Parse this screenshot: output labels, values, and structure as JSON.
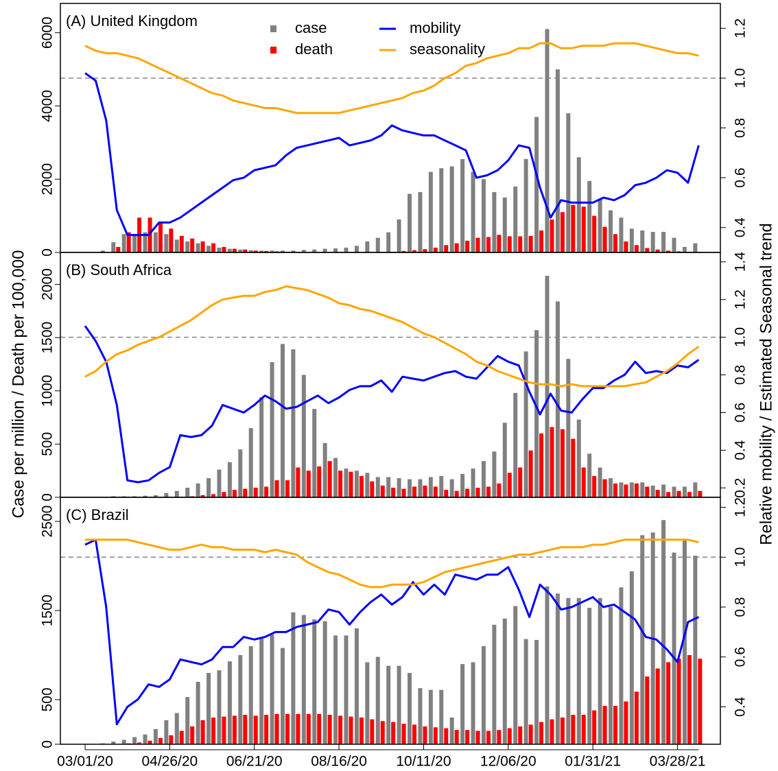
{
  "y_label": "Case per million / Death per 100,000",
  "y2_label": "Relative mobility / Estimated Seasonal trend",
  "chart_data": [
    {
      "type": "bar_line",
      "title": "(A) United Kingdom",
      "legend": true,
      "ylim": [
        0,
        6800
      ],
      "yticks": [
        0,
        2000,
        4000,
        6000
      ],
      "y2lim": [
        0.3,
        1.3
      ],
      "y2ticks": [
        0.4,
        0.6,
        0.8,
        {
          "value": 1,
          "label": "1.0"
        },
        1.2
      ],
      "y2_reference": 1,
      "series": [
        {
          "name": "case",
          "mark": "bar",
          "color": "#808080",
          "values": [
            0,
            10,
            50,
            280,
            500,
            500,
            550,
            550,
            500,
            350,
            300,
            250,
            180,
            130,
            100,
            80,
            60,
            50,
            50,
            50,
            50,
            70,
            80,
            100,
            110,
            130,
            180,
            300,
            400,
            550,
            900,
            1600,
            1650,
            2200,
            2300,
            2350,
            2550,
            2200,
            2000,
            1650,
            1500,
            1800,
            2550,
            3700,
            6100,
            5000,
            3800,
            2600,
            1950,
            1450,
            1150,
            950,
            650,
            600,
            560,
            560,
            400,
            150,
            250
          ]
        },
        {
          "name": "death",
          "mark": "bar",
          "color": "#ff0000",
          "values": [
            0,
            0,
            0,
            150,
            550,
            950,
            950,
            800,
            650,
            450,
            380,
            300,
            250,
            150,
            100,
            80,
            50,
            40,
            30,
            20,
            15,
            10,
            10,
            10,
            10,
            10,
            10,
            10,
            15,
            20,
            40,
            60,
            90,
            130,
            200,
            250,
            320,
            400,
            420,
            480,
            440,
            440,
            450,
            600,
            900,
            1100,
            1300,
            1250,
            1000,
            700,
            500,
            300,
            200,
            120,
            80,
            50,
            30,
            20,
            15
          ]
        },
        {
          "name": "mobility",
          "mark": "line",
          "axis": "y2",
          "color": "#0000ff",
          "values": [
            1.02,
            0.99,
            0.83,
            0.47,
            0.37,
            0.37,
            0.37,
            0.42,
            0.42,
            0.44,
            0.47,
            0.5,
            0.53,
            0.56,
            0.59,
            0.6,
            0.63,
            0.64,
            0.65,
            0.69,
            0.72,
            0.73,
            0.74,
            0.75,
            0.76,
            0.73,
            0.74,
            0.75,
            0.77,
            0.81,
            0.79,
            0.78,
            0.77,
            0.77,
            0.75,
            0.73,
            0.71,
            0.6,
            0.61,
            0.63,
            0.67,
            0.73,
            0.72,
            0.56,
            0.44,
            0.51,
            0.5,
            0.5,
            0.5,
            0.52,
            0.51,
            0.53,
            0.57,
            0.58,
            0.6,
            0.63,
            0.62,
            0.58,
            0.73
          ]
        },
        {
          "name": "seasonality",
          "mark": "line",
          "axis": "y2",
          "color": "#ffa500",
          "values": [
            1.13,
            1.11,
            1.1,
            1.1,
            1.09,
            1.08,
            1.06,
            1.04,
            1.02,
            1.0,
            0.98,
            0.96,
            0.94,
            0.93,
            0.91,
            0.9,
            0.89,
            0.88,
            0.88,
            0.87,
            0.86,
            0.86,
            0.86,
            0.86,
            0.86,
            0.87,
            0.88,
            0.89,
            0.9,
            0.91,
            0.92,
            0.94,
            0.95,
            0.97,
            1.0,
            1.02,
            1.05,
            1.06,
            1.08,
            1.09,
            1.1,
            1.12,
            1.12,
            1.14,
            1.14,
            1.12,
            1.12,
            1.13,
            1.13,
            1.13,
            1.14,
            1.14,
            1.14,
            1.13,
            1.12,
            1.11,
            1.1,
            1.1,
            1.09
          ]
        }
      ]
    },
    {
      "type": "bar_line",
      "title": "(B) South Africa",
      "ylim": [
        0,
        2300
      ],
      "yticks": [
        0,
        500,
        1000,
        1500,
        2000
      ],
      "y2lim": [
        0.15,
        1.45
      ],
      "y2ticks": [
        0.2,
        0.4,
        0.6,
        0.8,
        {
          "value": 1,
          "label": "1.0"
        },
        1.2,
        1.4
      ],
      "y2_reference": 1,
      "series": [
        {
          "mark": "bar",
          "color": "#808080",
          "values": [
            0,
            0,
            0,
            10,
            10,
            10,
            15,
            20,
            40,
            60,
            90,
            130,
            180,
            260,
            330,
            450,
            650,
            940,
            1270,
            1440,
            1390,
            1150,
            830,
            510,
            370,
            270,
            250,
            230,
            190,
            190,
            180,
            170,
            170,
            190,
            200,
            170,
            220,
            270,
            340,
            430,
            700,
            980,
            1370,
            1570,
            2080,
            1840,
            1300,
            730,
            410,
            280,
            180,
            140,
            140,
            140,
            110,
            120,
            100,
            100,
            140
          ]
        },
        {
          "mark": "bar",
          "color": "#ff0000",
          "values": [
            0,
            0,
            0,
            0,
            0,
            0,
            0,
            0,
            0,
            5,
            10,
            20,
            30,
            50,
            70,
            80,
            90,
            100,
            160,
            160,
            280,
            250,
            290,
            340,
            250,
            240,
            200,
            150,
            110,
            90,
            80,
            100,
            110,
            100,
            70,
            60,
            80,
            90,
            100,
            130,
            230,
            280,
            440,
            600,
            660,
            640,
            550,
            280,
            200,
            170,
            130,
            120,
            130,
            100,
            70,
            50,
            60,
            50,
            60
          ]
        },
        {
          "mark": "line",
          "axis": "y2",
          "color": "#0000ff",
          "values": [
            1.06,
            0.98,
            0.87,
            0.64,
            0.24,
            0.23,
            0.24,
            0.28,
            0.31,
            0.48,
            0.47,
            0.48,
            0.53,
            0.64,
            0.62,
            0.6,
            0.64,
            0.69,
            0.66,
            0.62,
            0.63,
            0.66,
            0.69,
            0.65,
            0.68,
            0.72,
            0.74,
            0.74,
            0.77,
            0.71,
            0.79,
            0.78,
            0.77,
            0.79,
            0.81,
            0.82,
            0.79,
            0.78,
            0.84,
            0.9,
            0.87,
            0.85,
            0.71,
            0.59,
            0.7,
            0.61,
            0.6,
            0.67,
            0.73,
            0.73,
            0.77,
            0.8,
            0.87,
            0.81,
            0.82,
            0.81,
            0.85,
            0.84,
            0.88
          ]
        },
        {
          "mark": "line",
          "axis": "y2",
          "color": "#ffa500",
          "values": [
            0.79,
            0.82,
            0.87,
            0.91,
            0.93,
            0.96,
            0.98,
            1.0,
            1.03,
            1.06,
            1.09,
            1.13,
            1.17,
            1.2,
            1.21,
            1.22,
            1.22,
            1.24,
            1.25,
            1.27,
            1.26,
            1.25,
            1.23,
            1.21,
            1.18,
            1.17,
            1.15,
            1.14,
            1.12,
            1.1,
            1.08,
            1.05,
            1.02,
            1.0,
            0.97,
            0.94,
            0.91,
            0.87,
            0.85,
            0.82,
            0.8,
            0.78,
            0.76,
            0.75,
            0.75,
            0.74,
            0.75,
            0.74,
            0.74,
            0.74,
            0.74,
            0.74,
            0.75,
            0.76,
            0.79,
            0.82,
            0.86,
            0.91,
            0.95
          ]
        }
      ]
    },
    {
      "type": "bar_line",
      "title": "(C) Brazil",
      "categories": [
        "03/01/20",
        null,
        null,
        null,
        null,
        null,
        null,
        null,
        "04/26/20",
        null,
        null,
        null,
        null,
        null,
        null,
        null,
        "06/21/20",
        null,
        null,
        null,
        null,
        null,
        null,
        null,
        "08/16/20",
        null,
        null,
        null,
        null,
        null,
        null,
        null,
        "10/11/20",
        null,
        null,
        null,
        null,
        null,
        null,
        null,
        "12/06/20",
        null,
        null,
        null,
        null,
        null,
        null,
        null,
        "01/31/21",
        null,
        null,
        null,
        null,
        null,
        null,
        null,
        "03/28/21",
        null,
        null
      ],
      "ylim": [
        0,
        2770
      ],
      "yticks": [
        0,
        500,
        1500,
        2500
      ],
      "y2lim": [
        0.25,
        1.24
      ],
      "y2ticks": [
        0.4,
        0.6,
        0.8,
        {
          "value": 1,
          "label": "1.0"
        },
        1.2
      ],
      "y2_reference": 1,
      "series": [
        {
          "mark": "bar",
          "color": "#808080",
          "values": [
            0,
            0,
            10,
            30,
            50,
            80,
            110,
            170,
            270,
            350,
            530,
            700,
            800,
            830,
            930,
            1000,
            1100,
            1200,
            1230,
            1080,
            1480,
            1450,
            1400,
            1380,
            1220,
            1220,
            1300,
            920,
            980,
            880,
            880,
            800,
            630,
            610,
            610,
            300,
            900,
            920,
            1100,
            1340,
            1410,
            1550,
            1180,
            1170,
            1770,
            1690,
            1640,
            1640,
            1530,
            1640,
            1540,
            1760,
            1940,
            2345,
            2375,
            2515,
            2150,
            2300,
            2115
          ]
        },
        {
          "mark": "bar",
          "color": "#ff0000",
          "values": [
            0,
            0,
            0,
            0,
            10,
            20,
            40,
            70,
            100,
            150,
            200,
            270,
            300,
            310,
            320,
            330,
            320,
            330,
            340,
            340,
            340,
            340,
            340,
            330,
            320,
            310,
            300,
            280,
            260,
            250,
            230,
            220,
            200,
            190,
            180,
            160,
            160,
            150,
            150,
            160,
            180,
            200,
            220,
            250,
            280,
            300,
            330,
            330,
            380,
            430,
            430,
            480,
            590,
            760,
            850,
            920,
            960,
            1000,
            960
          ]
        },
        {
          "mark": "line",
          "axis": "y2",
          "color": "#0000ff",
          "values": [
            1.05,
            1.07,
            0.8,
            0.33,
            0.4,
            0.43,
            0.49,
            0.48,
            0.51,
            0.59,
            0.58,
            0.57,
            0.59,
            0.64,
            0.64,
            0.68,
            0.67,
            0.68,
            0.7,
            0.7,
            0.72,
            0.73,
            0.74,
            0.79,
            0.78,
            0.73,
            0.78,
            0.82,
            0.85,
            0.81,
            0.84,
            0.9,
            0.85,
            0.89,
            0.85,
            0.93,
            0.92,
            0.91,
            0.93,
            0.93,
            0.96,
            0.87,
            0.76,
            0.89,
            0.85,
            0.79,
            0.8,
            0.82,
            0.84,
            0.8,
            0.81,
            0.78,
            0.75,
            0.68,
            0.67,
            0.63,
            0.58,
            0.74,
            0.76
          ]
        },
        {
          "mark": "line",
          "axis": "y2",
          "color": "#ffa500",
          "values": [
            1.07,
            1.07,
            1.07,
            1.07,
            1.07,
            1.06,
            1.05,
            1.04,
            1.03,
            1.03,
            1.04,
            1.05,
            1.04,
            1.04,
            1.03,
            1.03,
            1.03,
            1.02,
            1.03,
            1.02,
            1.01,
            0.98,
            0.96,
            0.94,
            0.93,
            0.91,
            0.89,
            0.88,
            0.88,
            0.89,
            0.89,
            0.89,
            0.9,
            0.92,
            0.94,
            0.95,
            0.96,
            0.97,
            0.98,
            0.99,
            1.0,
            1.01,
            1.01,
            1.02,
            1.03,
            1.04,
            1.04,
            1.04,
            1.05,
            1.05,
            1.06,
            1.07,
            1.07,
            1.07,
            1.07,
            1.07,
            1.07,
            1.07,
            1.06
          ]
        }
      ]
    }
  ]
}
